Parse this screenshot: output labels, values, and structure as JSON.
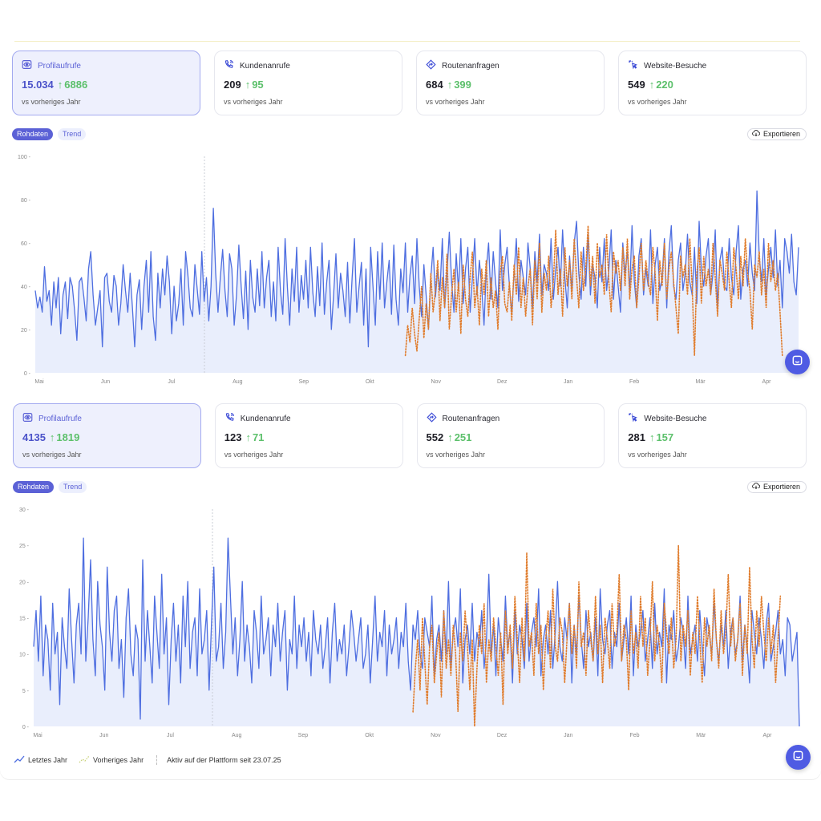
{
  "colors": {
    "current": "#4e6ee0",
    "previous": "#e07c2c",
    "area": "#e9eefc",
    "accent": "#5b61d6",
    "delta": "#5cc06b"
  },
  "panels": [
    {
      "cards": [
        {
          "label": "Profilaufrufe",
          "value": "15.034",
          "delta": "6886",
          "sub": "vs vorheriges Jahr",
          "icon": "eye-icon",
          "active": true
        },
        {
          "label": "Kundenanrufe",
          "value": "209",
          "delta": "95",
          "sub": "vs vorheriges Jahr",
          "icon": "phone-icon",
          "active": false
        },
        {
          "label": "Routenanfragen",
          "value": "684",
          "delta": "399",
          "sub": "vs vorheriges Jahr",
          "icon": "route-icon",
          "active": false
        },
        {
          "label": "Website-Besuche",
          "value": "549",
          "delta": "220",
          "sub": "vs vorheriges Jahr",
          "icon": "cursor-click-icon",
          "active": false
        }
      ],
      "toggle": {
        "raw": "Rohdaten",
        "trend": "Trend"
      },
      "export_label": "Exportieren"
    },
    {
      "cards": [
        {
          "label": "Profilaufrufe",
          "value": "4135",
          "delta": "1819",
          "sub": "vs vorheriges Jahr",
          "icon": "eye-icon",
          "active": true
        },
        {
          "label": "Kundenanrufe",
          "value": "123",
          "delta": "71",
          "sub": "vs vorheriges Jahr",
          "icon": "phone-icon",
          "active": false
        },
        {
          "label": "Routenanfragen",
          "value": "552",
          "delta": "251",
          "sub": "vs vorheriges Jahr",
          "icon": "route-icon",
          "active": false
        },
        {
          "label": "Website-Besuche",
          "value": "281",
          "delta": "157",
          "sub": "vs vorheriges Jahr",
          "icon": "cursor-click-icon",
          "active": false
        }
      ],
      "toggle": {
        "raw": "Rohdaten",
        "trend": "Trend"
      },
      "export_label": "Exportieren"
    }
  ],
  "legend": {
    "current": "Letztes Jahr",
    "previous": "Vorheriges Jahr",
    "note": "Aktiv auf der Plattform seit 23.07.25"
  },
  "chart_data": [
    {
      "type": "line",
      "x_ticks": [
        "Mai",
        "Jun",
        "Jul",
        "Aug",
        "Sep",
        "Okt",
        "Nov",
        "Dez",
        "Jan",
        "Feb",
        "Mär",
        "Apr"
      ],
      "ylim": [
        0,
        100
      ],
      "y_ticks": [
        0,
        20,
        40,
        60,
        80,
        100
      ],
      "marker_label_position": "between Jul and Aug (dashed vertical line)",
      "series": [
        {
          "name": "Letztes Jahr",
          "style": "solid",
          "fill": true,
          "values": [
            38,
            30,
            35,
            28,
            49,
            33,
            38,
            22,
            42,
            30,
            44,
            18,
            36,
            42,
            25,
            44,
            40,
            29,
            15,
            42,
            44,
            35,
            24,
            48,
            56,
            36,
            22,
            30,
            38,
            12,
            44,
            46,
            33,
            28,
            45,
            40,
            22,
            32,
            50,
            38,
            28,
            46,
            30,
            12,
            36,
            43,
            20,
            40,
            52,
            28,
            56,
            26,
            15,
            46,
            30,
            48,
            36,
            54,
            42,
            18,
            40,
            24,
            32,
            48,
            22,
            56,
            45,
            30,
            26,
            50,
            39,
            27,
            56,
            33,
            44,
            24,
            40,
            76,
            46,
            28,
            44,
            57,
            38,
            26,
            55,
            48,
            22,
            36,
            59,
            40,
            25,
            47,
            20,
            52,
            35,
            28,
            48,
            31,
            56,
            30,
            44,
            52,
            26,
            42,
            24,
            58,
            38,
            27,
            62,
            40,
            22,
            48,
            33,
            58,
            28,
            45,
            34,
            52,
            30,
            58,
            37,
            26,
            49,
            31,
            60,
            27,
            42,
            52,
            20,
            36,
            55,
            30,
            46,
            38,
            26,
            51,
            23,
            44,
            62,
            28,
            40,
            51,
            22,
            48,
            12,
            58,
            40,
            22,
            56,
            34,
            60,
            30,
            42,
            52,
            27,
            59,
            34,
            22,
            48,
            37,
            60,
            28,
            45,
            54,
            32,
            62,
            40,
            26,
            50,
            36,
            20,
            44,
            58,
            35,
            48,
            38,
            62,
            30,
            46,
            65,
            42,
            28,
            55,
            38,
            62,
            32,
            48,
            58,
            28,
            44,
            62,
            36,
            52,
            40,
            22,
            48,
            60,
            34,
            56,
            42,
            30,
            66,
            38,
            50,
            58,
            40,
            28,
            46,
            62,
            33,
            52,
            44,
            36,
            60,
            48,
            30,
            56,
            42,
            64,
            36,
            50,
            46,
            38,
            62,
            34,
            48,
            58,
            40,
            66,
            44,
            30,
            54,
            38,
            60,
            70,
            46,
            34,
            58,
            40,
            64,
            36,
            50,
            44,
            30,
            58,
            42,
            62,
            38,
            48,
            66,
            34,
            52,
            40,
            28,
            60,
            46,
            56,
            38,
            68,
            42,
            30,
            54,
            62,
            36,
            48,
            40,
            66,
            32,
            50,
            58,
            38,
            44,
            62,
            30,
            56,
            68,
            40,
            34,
            52,
            60,
            38,
            46,
            64,
            42,
            36,
            58,
            32,
            70,
            48,
            40,
            54,
            62,
            36,
            46,
            66,
            30,
            52,
            58,
            40,
            38,
            62,
            44,
            36,
            56,
            68,
            34,
            48,
            52,
            40,
            60,
            46,
            38,
            84,
            54,
            42,
            62,
            36,
            48,
            58,
            44,
            66,
            40,
            52,
            30,
            62,
            56,
            46,
            64,
            42,
            36,
            58
          ]
        },
        {
          "name": "Vorheriges Jahr",
          "style": "dotted",
          "fill": false,
          "start_index": 160,
          "values": [
            8,
            22,
            14,
            30,
            18,
            10,
            25,
            40,
            16,
            32,
            20,
            46,
            28,
            38,
            52,
            24,
            44,
            30,
            55,
            20,
            36,
            48,
            28,
            42,
            18,
            50,
            34,
            26,
            44,
            56,
            30,
            40,
            22,
            48,
            36,
            52,
            26,
            44,
            30,
            38,
            20,
            46,
            54,
            32,
            28,
            42,
            24,
            50,
            36,
            58,
            30,
            44,
            26,
            40,
            48,
            22,
            52,
            34,
            60,
            28,
            46,
            38,
            54,
            30,
            42,
            66,
            36,
            48,
            26,
            58,
            40,
            52,
            34,
            62,
            44,
            30,
            56,
            38,
            48,
            68,
            40,
            54,
            32,
            60,
            44,
            50,
            36,
            64,
            42,
            28,
            56,
            46,
            52,
            38,
            58,
            40,
            62,
            34,
            48,
            54,
            30,
            44,
            60,
            38,
            52,
            42,
            36,
            58,
            46,
            24,
            52,
            40,
            60,
            34,
            48,
            56,
            42,
            30,
            18,
            54,
            44,
            50,
            36,
            62,
            40,
            8,
            46,
            58,
            32,
            54,
            40,
            48,
            36,
            60,
            44,
            26,
            52,
            46,
            38,
            56,
            42,
            30,
            58,
            48,
            34,
            54,
            40,
            62,
            46,
            38,
            20,
            50,
            44,
            56,
            36,
            48,
            30,
            60,
            42,
            52,
            38,
            46,
            28,
            8
          ]
        }
      ]
    },
    {
      "type": "line",
      "x_ticks": [
        "Mai",
        "Jun",
        "Jul",
        "Aug",
        "Sep",
        "Okt",
        "Nov",
        "Dez",
        "Jan",
        "Feb",
        "Mär",
        "Apr"
      ],
      "ylim": [
        0,
        30
      ],
      "y_ticks": [
        0,
        5,
        10,
        15,
        20,
        25,
        30
      ],
      "marker_label_position": "between Jul and Aug (dashed vertical line)",
      "series": [
        {
          "name": "Letztes Jahr",
          "style": "solid",
          "fill": true,
          "values": [
            11,
            16,
            9,
            18,
            7,
            14,
            12,
            5,
            17,
            10,
            13,
            3,
            15,
            11,
            8,
            19,
            12,
            6,
            14,
            17,
            10,
            26,
            9,
            15,
            23,
            12,
            7,
            20,
            14,
            11,
            5,
            22,
            13,
            9,
            16,
            18,
            8,
            12,
            4,
            15,
            19,
            10,
            7,
            14,
            12,
            1,
            23,
            9,
            16,
            11,
            6,
            18,
            13,
            8,
            21,
            10,
            15,
            3,
            12,
            17,
            9,
            14,
            6,
            18,
            11,
            20,
            8,
            13,
            15,
            7,
            19,
            10,
            12,
            16,
            5,
            14,
            22,
            9,
            11,
            17,
            8,
            13,
            26,
            18,
            10,
            15,
            7,
            12,
            20,
            9,
            14,
            11,
            6,
            16,
            13,
            8,
            18,
            10,
            12,
            15,
            7,
            14,
            11,
            17,
            9,
            13,
            16,
            5,
            12,
            10,
            18,
            8,
            14,
            11,
            15,
            9,
            13,
            7,
            16,
            12,
            10,
            14,
            8,
            11,
            15,
            6,
            13,
            17,
            9,
            12,
            10,
            14,
            7,
            11,
            16,
            13,
            9,
            12,
            15,
            8,
            10,
            14,
            6,
            12,
            18,
            9,
            13,
            11,
            16,
            7,
            14,
            10,
            12,
            15,
            8,
            13,
            11,
            17,
            9,
            5,
            14,
            12,
            16,
            10,
            8,
            15,
            13,
            11,
            18,
            7,
            12,
            14,
            9,
            16,
            10,
            20,
            8,
            13,
            15,
            11,
            19,
            6,
            12,
            14,
            10,
            17,
            9,
            13,
            11,
            16,
            8,
            12,
            21,
            10,
            14,
            7,
            15,
            12,
            9,
            18,
            11,
            13,
            6,
            16,
            10,
            14,
            12,
            8,
            17,
            9,
            13,
            15,
            11,
            19,
            7,
            12,
            14,
            10,
            16,
            8,
            13,
            20,
            11,
            9,
            15,
            12,
            17,
            6,
            14,
            10,
            18,
            12,
            8,
            16,
            11,
            13,
            9,
            15,
            7,
            19,
            12,
            10,
            14,
            16,
            8,
            13,
            11,
            17,
            9,
            12,
            15,
            10,
            18,
            7,
            14,
            11,
            13,
            16,
            9,
            12,
            15,
            8,
            17,
            10,
            13,
            11,
            19,
            6,
            14,
            12,
            16,
            9,
            11,
            15,
            13,
            8,
            18,
            10,
            12,
            14,
            9,
            16,
            11,
            7,
            15,
            13,
            10,
            17,
            12,
            9,
            14,
            11,
            16,
            8,
            13,
            15,
            10,
            12,
            18,
            9,
            14,
            11,
            6,
            16,
            13,
            10,
            15,
            12,
            8,
            14,
            17,
            9,
            11,
            13,
            16,
            10,
            12,
            7,
            15,
            14,
            9,
            11,
            13,
            0
          ]
        },
        {
          "name": "Vorheriges Jahr",
          "style": "dotted",
          "fill": false,
          "start_index": 160,
          "values": [
            2,
            8,
            12,
            5,
            15,
            9,
            3,
            11,
            14,
            6,
            10,
            13,
            4,
            16,
            8,
            12,
            7,
            14,
            10,
            2,
            13,
            9,
            16,
            11,
            5,
            12,
            0,
            8,
            14,
            10,
            17,
            6,
            12,
            9,
            15,
            11,
            7,
            13,
            3,
            16,
            10,
            14,
            8,
            18,
            12,
            6,
            15,
            9,
            24,
            11,
            13,
            7,
            17,
            10,
            14,
            5,
            12,
            16,
            8,
            19,
            11,
            9,
            15,
            13,
            6,
            12,
            17,
            10,
            14,
            8,
            20,
            11,
            13,
            7,
            16,
            12,
            9,
            18,
            10,
            14,
            6,
            15,
            12,
            8,
            17,
            11,
            13,
            21,
            9,
            14,
            12,
            5,
            16,
            10,
            13,
            8,
            18,
            11,
            15,
            7,
            12,
            20,
            9,
            14,
            11,
            6,
            17,
            13,
            10,
            15,
            8,
            12,
            25,
            9,
            14,
            11,
            16,
            7,
            13,
            10,
            18,
            12,
            6,
            15,
            11,
            14,
            9,
            19,
            12,
            8,
            16,
            10,
            13,
            21,
            11,
            15,
            9,
            12,
            17,
            7,
            14,
            10,
            22,
            12,
            8,
            16,
            11,
            18,
            13,
            9,
            15,
            10,
            14,
            6,
            12,
            18
          ]
        }
      ]
    }
  ]
}
